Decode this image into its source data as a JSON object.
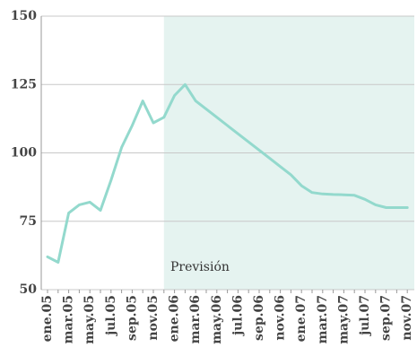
{
  "chart_data": {
    "type": "line",
    "categories": [
      "ene.05",
      null,
      "mar.05",
      null,
      "may.05",
      null,
      "jul.05",
      null,
      "sep.05",
      null,
      "nov.05",
      null,
      "ene.06",
      null,
      "mar.06",
      null,
      "may.06",
      null,
      "jul.06",
      null,
      "sep.06",
      null,
      "nov.06",
      null,
      "ene.07",
      null,
      "mar.07",
      null,
      "may.07",
      null,
      "jul.07",
      null,
      "sep.07",
      null,
      "nov.07"
    ],
    "series": [
      {
        "color": "#93d9cd",
        "values": [
          62,
          60,
          78,
          81,
          82,
          79,
          90,
          102,
          110,
          119,
          111,
          113,
          121,
          125,
          119,
          116,
          113,
          110,
          107,
          104,
          101,
          98,
          95,
          92,
          88,
          85.5,
          85,
          84.8,
          84.7,
          84.5,
          83,
          81,
          80,
          80,
          80
        ]
      }
    ],
    "forecast_start": 11,
    "forecast_color": "#e5f3f0",
    "annotation": "Previsión",
    "ylim": [
      50,
      150
    ],
    "yticks": [
      50,
      75,
      100,
      125,
      150
    ],
    "grid": true
  }
}
